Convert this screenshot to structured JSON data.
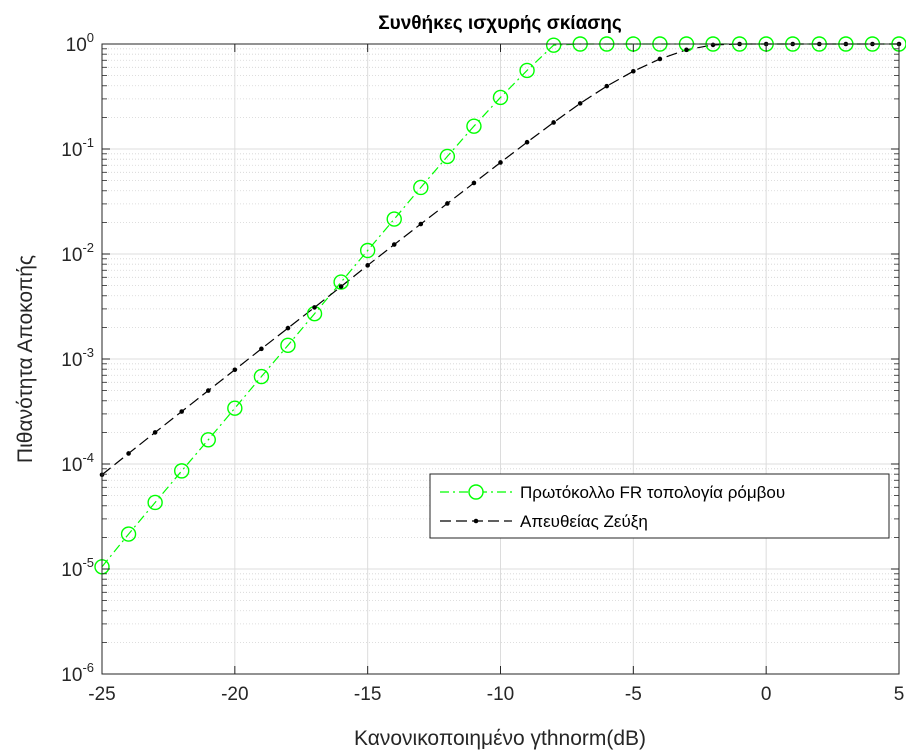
{
  "chart_data": {
    "type": "line",
    "title": "Συνθήκες ισχυρής σκίασης",
    "xlabel": "Κανονικοποιημένο γthnorm(dB)",
    "ylabel": "Πιθανότητα Αποκοπής",
    "xlim": [
      -25,
      5
    ],
    "ylim": [
      1e-06,
      1
    ],
    "y_scale": "log",
    "grid": true,
    "legend_position": "bottom-right",
    "x_ticks": [
      -25,
      -20,
      -15,
      -10,
      -5,
      0,
      5
    ],
    "x_tick_labels": [
      "-25",
      "-20",
      "-15",
      "-10",
      "-5",
      "0",
      "5"
    ],
    "y_ticks": [
      {
        "value": 1e-06,
        "base": "10",
        "exp": "-6"
      },
      {
        "value": 1e-05,
        "base": "10",
        "exp": "-5"
      },
      {
        "value": 0.0001,
        "base": "10",
        "exp": "-4"
      },
      {
        "value": 0.001,
        "base": "10",
        "exp": "-3"
      },
      {
        "value": 0.01,
        "base": "10",
        "exp": "-2"
      },
      {
        "value": 0.1,
        "base": "10",
        "exp": "-1"
      },
      {
        "value": 1,
        "base": "10",
        "exp": "0"
      }
    ],
    "series": [
      {
        "name": "Πρωτόκολλο FR τοπολογία ρόμβου",
        "color": "#00ff00",
        "line_style": "dash-dot",
        "marker": "circle",
        "x": [
          -25,
          -24,
          -23,
          -22,
          -21,
          -20,
          -19,
          -18,
          -17,
          -16,
          -15,
          -14,
          -13,
          -12,
          -11,
          -10,
          -9,
          -8,
          -7,
          -6,
          -5,
          -4,
          -3,
          -2,
          -1,
          0,
          1,
          2,
          3,
          4,
          5
        ],
        "y": [
          1.05e-05,
          2.15e-05,
          4.3e-05,
          8.6e-05,
          0.00017,
          0.00034,
          0.00068,
          0.00135,
          0.0027,
          0.0054,
          0.0108,
          0.0215,
          0.043,
          0.085,
          0.165,
          0.31,
          0.56,
          0.975,
          1,
          1,
          1,
          1,
          1,
          1,
          1,
          1,
          1,
          1,
          1,
          1,
          1
        ]
      },
      {
        "name": "Απευθείας Ζεύξη",
        "color": "#000000",
        "line_style": "dashed",
        "marker": "dot",
        "x": [
          -25,
          -24,
          -23,
          -22,
          -21,
          -20,
          -19,
          -18,
          -17,
          -16,
          -15,
          -14,
          -13,
          -12,
          -11,
          -10,
          -9,
          -8,
          -7,
          -6,
          -5,
          -4,
          -3,
          -2,
          -1,
          0,
          1,
          2,
          3,
          4,
          5
        ],
        "y": [
          7.9e-05,
          0.000126,
          0.0002,
          0.000316,
          0.0005,
          0.00079,
          0.00125,
          0.00197,
          0.0031,
          0.0049,
          0.0078,
          0.0123,
          0.0193,
          0.0303,
          0.0475,
          0.0744,
          0.116,
          0.179,
          0.272,
          0.397,
          0.55,
          0.72,
          0.88,
          0.98,
          1,
          1,
          1,
          1,
          1,
          1,
          1
        ]
      }
    ]
  }
}
